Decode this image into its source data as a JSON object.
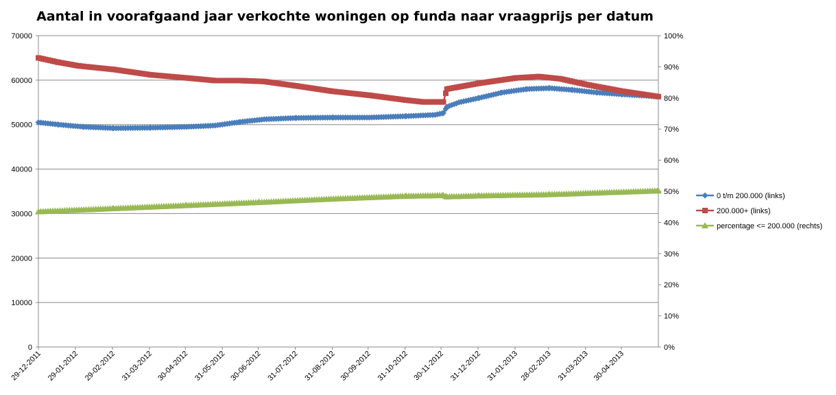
{
  "chart_data": {
    "type": "line",
    "title": "Aantal in voorafgaand jaar verkochte woningen op funda naar vraagprijs per datum",
    "left_axis": {
      "range": [
        0,
        70000
      ],
      "tick_values": [
        0,
        10000,
        20000,
        30000,
        40000,
        50000,
        60000,
        70000
      ],
      "tick_labels": [
        "0",
        "10000",
        "20000",
        "30000",
        "40000",
        "50000",
        "60000",
        "70000"
      ]
    },
    "right_axis": {
      "range": [
        0,
        100
      ],
      "tick_values": [
        0,
        10,
        20,
        30,
        40,
        50,
        60,
        70,
        80,
        90,
        100
      ],
      "tick_labels": [
        "0%",
        "10%",
        "20%",
        "30%",
        "40%",
        "50%",
        "60%",
        "70%",
        "80%",
        "90%",
        "100%"
      ]
    },
    "x_axis": {
      "range": [
        "2011-12-29",
        "2013-05-31"
      ],
      "tick_dates": [
        "2011-12-29",
        "2012-01-29",
        "2012-02-29",
        "2012-03-31",
        "2012-04-30",
        "2012-05-31",
        "2012-06-30",
        "2012-07-31",
        "2012-08-31",
        "2012-09-30",
        "2012-10-31",
        "2012-11-30",
        "2012-12-31",
        "2013-01-31",
        "2013-02-28",
        "2013-03-31",
        "2013-04-30"
      ],
      "tick_labels": [
        "29-12-2011",
        "29-01-2012",
        "29-02-2012",
        "31-03-2012",
        "30-04-2012",
        "31-05-2012",
        "30-06-2012",
        "31-07-2012",
        "31-08-2012",
        "30-09-2012",
        "31-10-2012",
        "30-11-2012",
        "31-12-2012",
        "31-01-2013",
        "28-02-2013",
        "31-03-2013",
        "30-04-2013"
      ]
    },
    "grid": true,
    "legend_position": "right",
    "series": [
      {
        "name": "0 t/m 200.000 (links)",
        "axis": "left",
        "color": "#4A7EBB",
        "marker": "diamond",
        "points": [
          [
            "2011-12-29",
            50500
          ],
          [
            "2012-01-15",
            50000
          ],
          [
            "2012-02-05",
            49500
          ],
          [
            "2012-03-01",
            49200
          ],
          [
            "2012-04-01",
            49300
          ],
          [
            "2012-05-01",
            49500
          ],
          [
            "2012-05-25",
            49800
          ],
          [
            "2012-06-15",
            50600
          ],
          [
            "2012-07-05",
            51200
          ],
          [
            "2012-08-01",
            51500
          ],
          [
            "2012-09-01",
            51600
          ],
          [
            "2012-10-01",
            51600
          ],
          [
            "2012-11-01",
            51900
          ],
          [
            "2012-11-25",
            52200
          ],
          [
            "2012-12-02",
            52600
          ],
          [
            "2012-12-05",
            54000
          ],
          [
            "2012-12-15",
            55000
          ],
          [
            "2013-01-01",
            56000
          ],
          [
            "2013-01-20",
            57200
          ],
          [
            "2013-02-10",
            58000
          ],
          [
            "2013-03-01",
            58200
          ],
          [
            "2013-03-20",
            57800
          ],
          [
            "2013-04-10",
            57200
          ],
          [
            "2013-05-01",
            56800
          ],
          [
            "2013-05-31",
            56300
          ]
        ]
      },
      {
        "name": "200.000+ (links)",
        "axis": "left",
        "color": "#BE4B48",
        "marker": "square",
        "points": [
          [
            "2011-12-29",
            65000
          ],
          [
            "2012-01-15",
            64000
          ],
          [
            "2012-02-01",
            63200
          ],
          [
            "2012-03-01",
            62400
          ],
          [
            "2012-04-01",
            61200
          ],
          [
            "2012-05-01",
            60500
          ],
          [
            "2012-05-25",
            59900
          ],
          [
            "2012-06-15",
            59900
          ],
          [
            "2012-07-05",
            59700
          ],
          [
            "2012-08-01",
            58700
          ],
          [
            "2012-08-31",
            57500
          ],
          [
            "2012-10-01",
            56600
          ],
          [
            "2012-11-01",
            55500
          ],
          [
            "2012-11-15",
            55100
          ],
          [
            "2012-12-02",
            55100
          ],
          [
            "2012-12-05",
            58000
          ],
          [
            "2013-01-01",
            59300
          ],
          [
            "2013-02-01",
            60500
          ],
          [
            "2013-02-20",
            60800
          ],
          [
            "2013-03-10",
            60300
          ],
          [
            "2013-04-01",
            59000
          ],
          [
            "2013-05-01",
            57500
          ],
          [
            "2013-05-31",
            56300
          ]
        ]
      },
      {
        "name": "percentage <= 200.000 (rechts)",
        "axis": "right",
        "color": "#98B954",
        "marker": "triangle",
        "points": [
          [
            "2011-12-29",
            43.5
          ],
          [
            "2012-03-01",
            44.5
          ],
          [
            "2012-05-01",
            45.5
          ],
          [
            "2012-07-01",
            46.5
          ],
          [
            "2012-09-01",
            47.6
          ],
          [
            "2012-11-01",
            48.5
          ],
          [
            "2012-12-02",
            48.7
          ],
          [
            "2012-12-05",
            48.3
          ],
          [
            "2013-01-01",
            48.6
          ],
          [
            "2013-03-01",
            49.0
          ],
          [
            "2013-05-31",
            50.2
          ]
        ]
      }
    ]
  }
}
